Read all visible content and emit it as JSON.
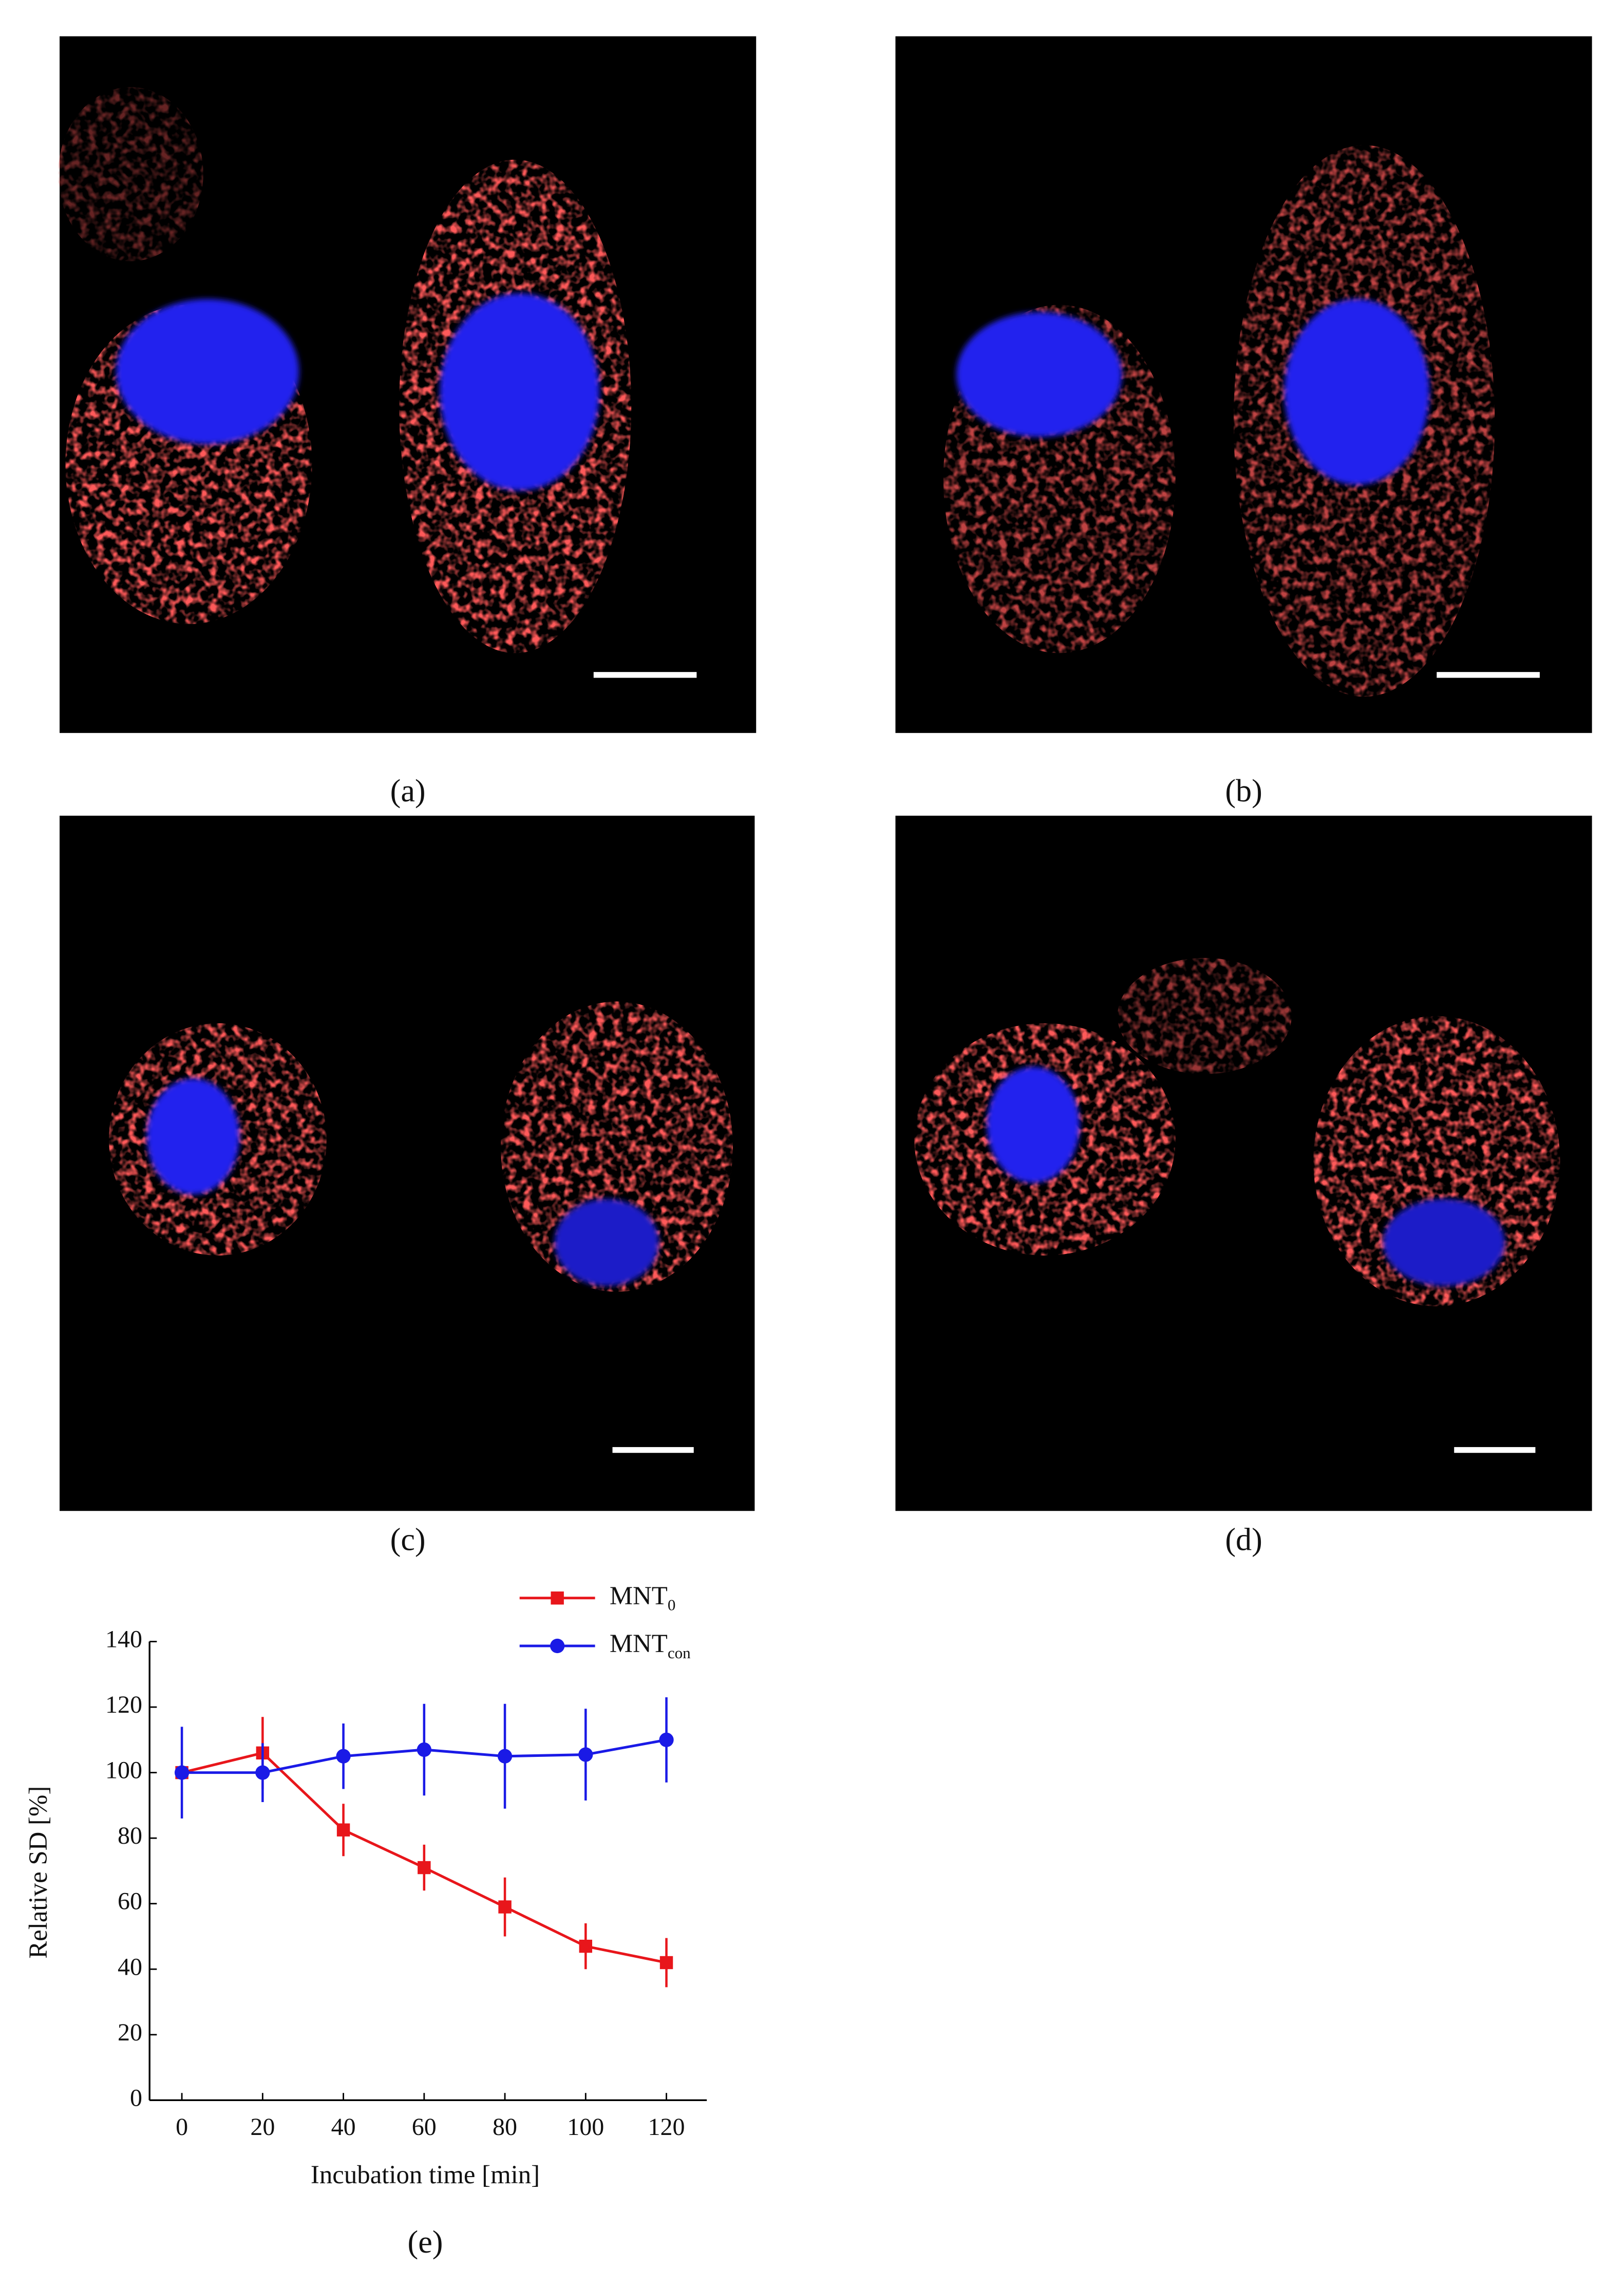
{
  "panels": [
    {
      "label": "(a)"
    },
    {
      "label": "(b)"
    },
    {
      "label": "(c)"
    },
    {
      "label": "(d)"
    }
  ],
  "chart_data": {
    "type": "line",
    "panel_label": "(e)",
    "xlabel": "Incubation time [min]",
    "ylabel": "Relative SD [%]",
    "x": [
      0,
      20,
      40,
      60,
      80,
      100,
      120
    ],
    "xlim": [
      -8,
      130
    ],
    "ylim": [
      0,
      140
    ],
    "xticks": [
      0,
      20,
      40,
      60,
      80,
      100,
      120
    ],
    "yticks": [
      0,
      20,
      40,
      60,
      80,
      100,
      120,
      140
    ],
    "legend": "top-right",
    "series": [
      {
        "name": "MNT",
        "subscript": "0",
        "color": "#e8161b",
        "marker": "square",
        "values": [
          100,
          106,
          82.5,
          71,
          59,
          47,
          42
        ],
        "errors": [
          0,
          11,
          8,
          7,
          9,
          7,
          7.5
        ]
      },
      {
        "name": "MNT",
        "subscript": "con",
        "color": "#1a1ae6",
        "marker": "circle",
        "values": [
          100,
          100,
          105,
          107,
          105,
          105.5,
          110
        ],
        "errors": [
          14,
          9,
          10,
          14,
          16,
          14,
          13
        ]
      }
    ]
  }
}
